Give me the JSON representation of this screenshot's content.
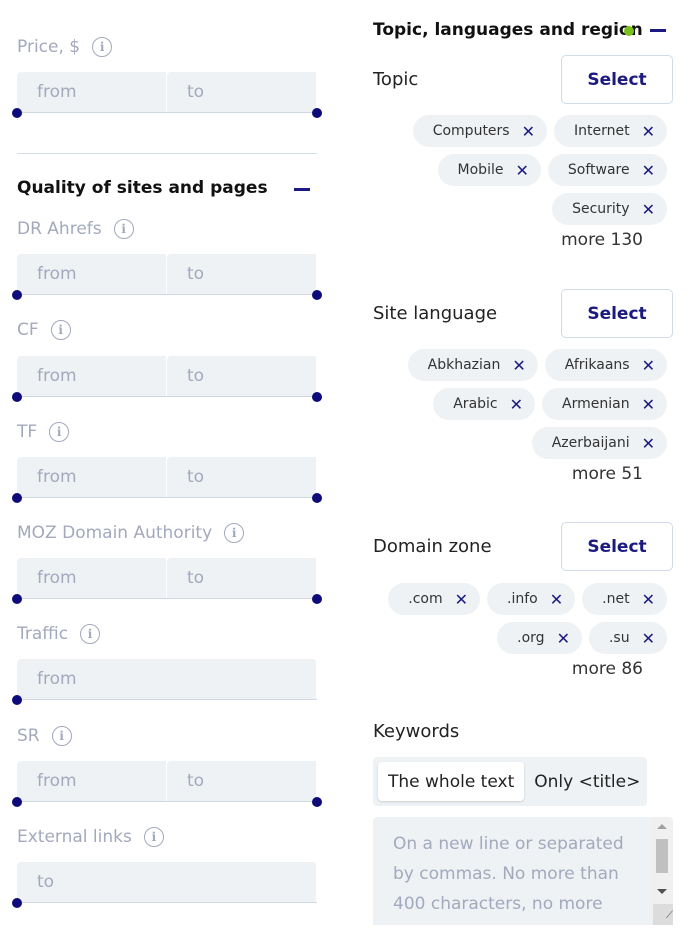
{
  "left": {
    "price": {
      "label": "Price, $",
      "from": "from",
      "to": "to"
    },
    "quality": {
      "title": "Quality of sites and pages"
    },
    "dr": {
      "label": "DR Ahrefs",
      "from": "from",
      "to": "to"
    },
    "cf": {
      "label": "CF",
      "from": "from",
      "to": "to"
    },
    "tf": {
      "label": "TF",
      "from": "from",
      "to": "to"
    },
    "moz": {
      "label": "MOZ Domain Authority",
      "from": "from",
      "to": "to"
    },
    "traffic": {
      "label": "Traffic",
      "from": "from"
    },
    "sr": {
      "label": "SR",
      "from": "from",
      "to": "to"
    },
    "ext": {
      "label": "External links",
      "to": "to"
    }
  },
  "right": {
    "title": "Topic, languages and region",
    "status_color": "#7cc01c",
    "topic": {
      "label": "Topic",
      "select": "Select",
      "chips": [
        "Computers",
        "Internet",
        "Mobile",
        "Software",
        "Security"
      ],
      "more": "more 130"
    },
    "lang": {
      "label": "Site language",
      "select": "Select",
      "chips": [
        "Abkhazian",
        "Afrikaans",
        "Arabic",
        "Armenian",
        "Azerbaijani"
      ],
      "more": "more 51"
    },
    "zone": {
      "label": "Domain zone",
      "select": "Select",
      "chips": [
        ".com",
        ".info",
        ".net",
        ".org",
        ".su"
      ],
      "more": "more 86"
    },
    "keywords": {
      "label": "Keywords",
      "seg": [
        "The whole text",
        "Only <title>"
      ],
      "placeholder": "On a new line or separated by commas. No more than 400 characters, no more"
    }
  }
}
